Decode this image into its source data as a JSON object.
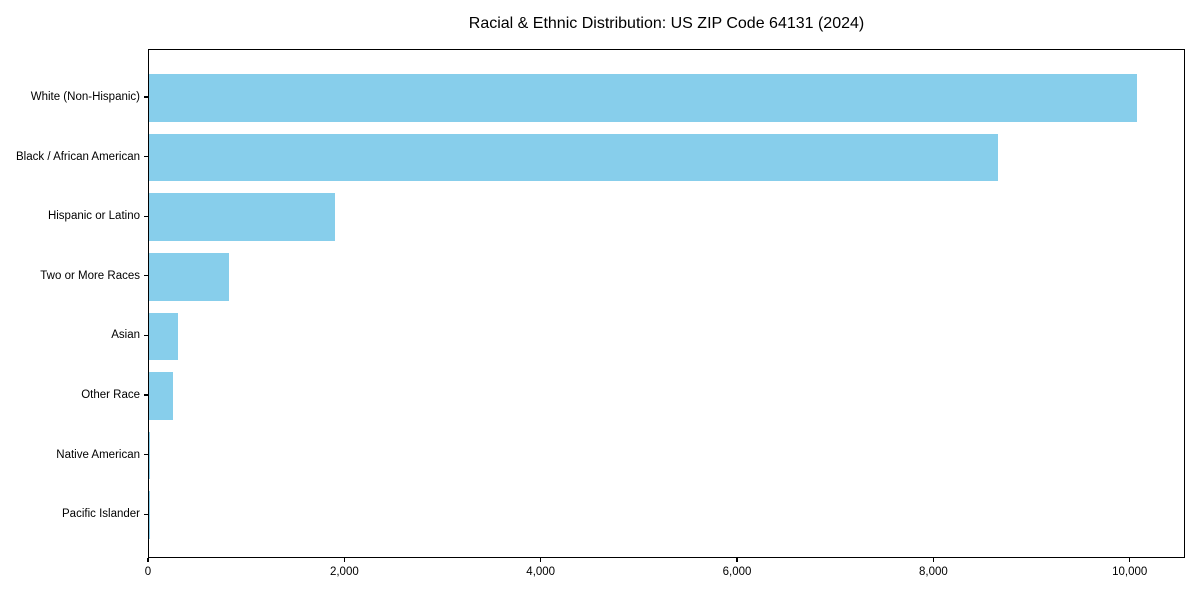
{
  "chart_data": {
    "type": "bar",
    "orientation": "horizontal",
    "title": "Racial & Ethnic Distribution: US ZIP Code 64131 (2024)",
    "categories": [
      "White (Non-Hispanic)",
      "Black / African American",
      "Hispanic or Latino",
      "Two or More Races",
      "Asian",
      "Other Race",
      "Native American",
      "Pacific Islander"
    ],
    "values": [
      10060,
      8650,
      1890,
      810,
      300,
      240,
      10,
      5
    ],
    "xlabel": "",
    "ylabel": "",
    "xlim": [
      0,
      10563
    ],
    "x_ticks": [
      0,
      2000,
      4000,
      6000,
      8000,
      10000
    ],
    "x_tick_labels": [
      "0",
      "2,000",
      "4,000",
      "6,000",
      "8,000",
      "10,000"
    ],
    "bar_color": "#87CEEB",
    "axis_color": "#000000",
    "background_color": "#ffffff",
    "grid": false,
    "legend": null
  }
}
